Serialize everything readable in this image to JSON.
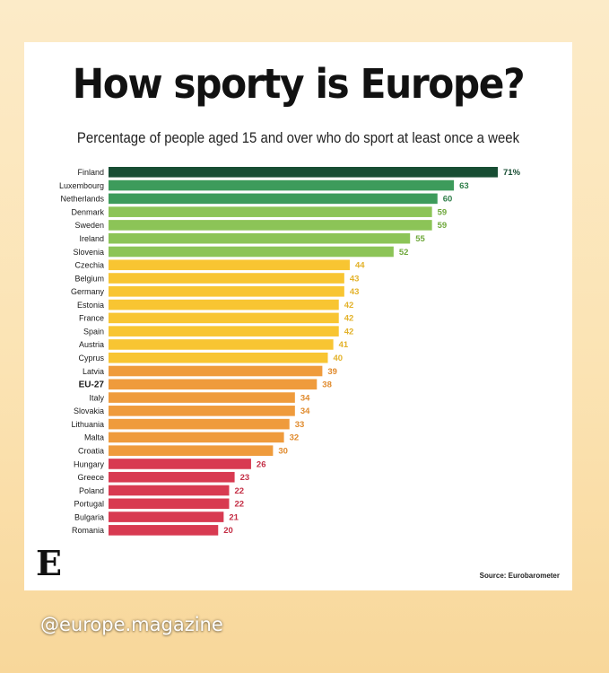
{
  "title": "How sporty is Europe?",
  "subtitle": "Percentage of people aged 15 and over who do sport at least once a week",
  "logo_text": "E",
  "source": "Source: Eurobarometer",
  "handle": "@europe.magazine",
  "colors": {
    "dark_green": "#174d33",
    "mid_green": "#3d9b5b",
    "light_green": "#8cc457",
    "yellow": "#f8c532",
    "orange": "#ef9b3c",
    "red": "#d83a51"
  },
  "chart_data": {
    "type": "bar",
    "orientation": "horizontal",
    "title": "How sporty is Europe?",
    "subtitle": "Percentage of people aged 15 and over who do sport at least once a week",
    "xlim": [
      0,
      71
    ],
    "grid": false,
    "categories": [
      "Finland",
      "Luxembourg",
      "Netherlands",
      "Denmark",
      "Sweden",
      "Ireland",
      "Slovenia",
      "Czechia",
      "Belgium",
      "Germany",
      "Estonia",
      "France",
      "Spain",
      "Austria",
      "Cyprus",
      "Latvia",
      "EU-27",
      "Italy",
      "Slovakia",
      "Lithuania",
      "Malta",
      "Croatia",
      "Hungary",
      "Greece",
      "Poland",
      "Portugal",
      "Bulgaria",
      "Romania"
    ],
    "values": [
      71,
      63,
      60,
      59,
      59,
      55,
      52,
      44,
      43,
      43,
      42,
      42,
      42,
      41,
      40,
      39,
      38,
      34,
      34,
      33,
      32,
      30,
      26,
      23,
      22,
      22,
      21,
      20
    ],
    "value_labels": [
      "71%",
      "63",
      "60",
      "59",
      "59",
      "55",
      "52",
      "44",
      "43",
      "43",
      "42",
      "42",
      "42",
      "41",
      "40",
      "39",
      "38",
      "34",
      "34",
      "33",
      "32",
      "30",
      "26",
      "23",
      "22",
      "22",
      "21",
      "20"
    ],
    "highlight": "EU-27"
  }
}
